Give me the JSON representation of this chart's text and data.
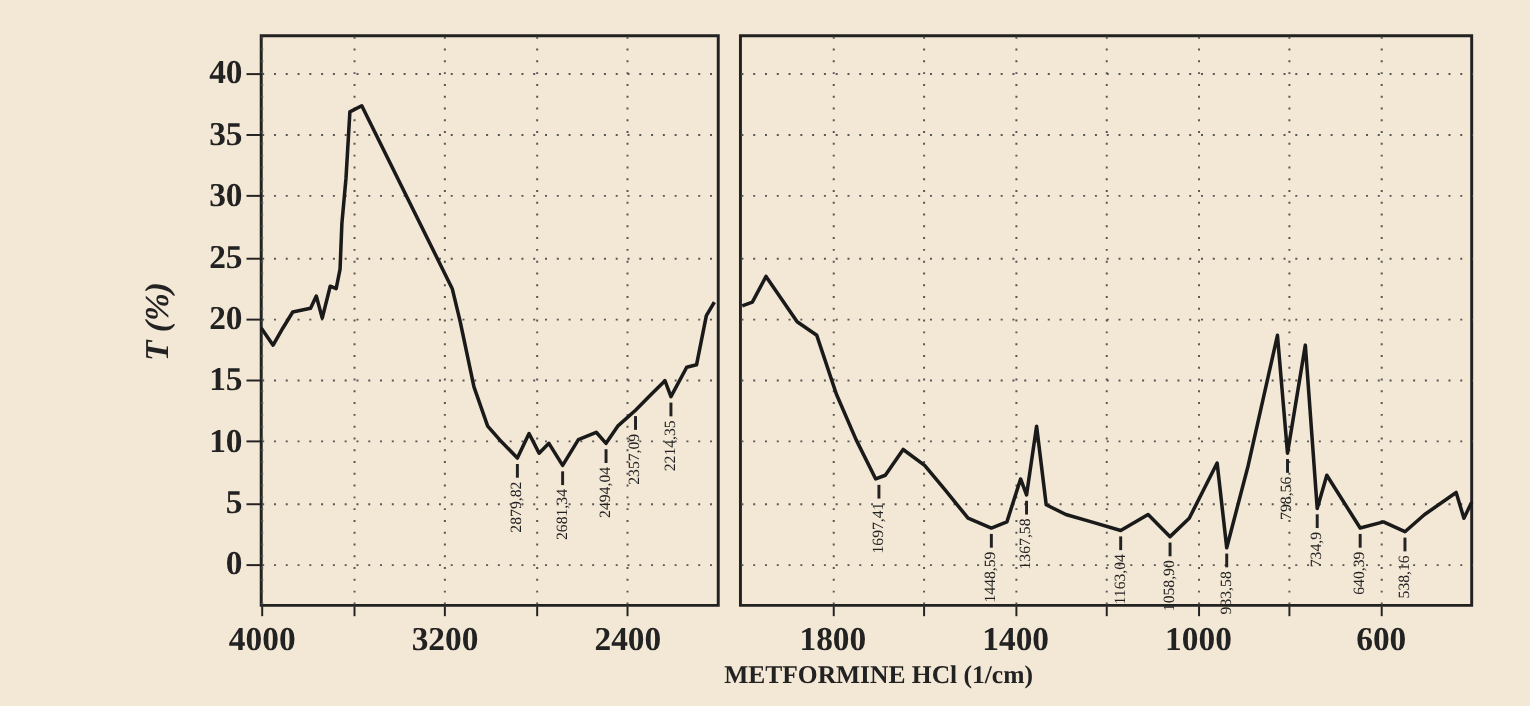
{
  "chart_data": [
    {
      "type": "line",
      "ylabel": "T (%)",
      "x": [
        4000,
        3948,
        3905,
        3862,
        3784,
        3759,
        3733,
        3698,
        3672,
        3655,
        3647,
        3629,
        3612,
        3560,
        3164,
        3129,
        3069,
        3009,
        2957,
        2879,
        2828,
        2784,
        2741,
        2681,
        2612,
        2534,
        2491,
        2440,
        2362,
        2293,
        2233,
        2207,
        2138,
        2095,
        2052,
        2017
      ],
      "series": [
        {
          "color": "#1a1a1a",
          "values": [
            19.2,
            17.8,
            19.2,
            20.5,
            20.8,
            21.8,
            20,
            22.6,
            22.4,
            24,
            27.7,
            31.4,
            36.8,
            37.3,
            22.4,
            19.7,
            14.4,
            11.2,
            10.1,
            8.6,
            10.6,
            9,
            9.8,
            8,
            10.1,
            10.7,
            9.8,
            11.2,
            12.5,
            13.8,
            14.9,
            13.6,
            16,
            16.2,
            20.2,
            21.3
          ]
        }
      ],
      "xlim": [
        4000,
        2000
      ],
      "xticks": [
        4000,
        {
          "value": 3600,
          "label": null
        },
        3200,
        {
          "value": 2800,
          "label": null
        },
        2400
      ],
      "ylim": [
        -3.4,
        43
      ],
      "yticks": [
        0,
        5,
        10,
        15,
        20,
        25,
        30,
        35,
        40
      ],
      "grid": true,
      "line_style": "solid",
      "marker": "none",
      "annotations": [
        {
          "text": "2879,82",
          "x": 2879,
          "y": 8.6
        },
        {
          "text": "2681,34",
          "x": 2681,
          "y": 8
        },
        {
          "text": "2494,04",
          "x": 2491,
          "y": 9.8
        },
        {
          "text": "2357,09",
          "x": 2362,
          "y": 12.5
        },
        {
          "text": "2214,35",
          "x": 2207,
          "y": 13.6
        }
      ]
    },
    {
      "type": "line",
      "xlabel": "METFORMINE HCl (1/cm)",
      "tick_labels": "x",
      "x": [
        1996,
        1974,
        1944,
        1876,
        1833,
        1790,
        1747,
        1704,
        1683,
        1644,
        1597,
        1554,
        1502,
        1451,
        1417,
        1387,
        1374,
        1352,
        1331,
        1288,
        1232,
        1168,
        1108,
        1060,
        1018,
        957,
        936,
        889,
        825,
        803,
        764,
        738,
        717,
        644,
        593,
        546,
        503,
        434,
        417,
        400
      ],
      "series": [
        {
          "color": "#1a1a1a",
          "values": [
            21,
            21.3,
            23.4,
            19.7,
            18.6,
            13.8,
            10.1,
            6.9,
            7.2,
            9.3,
            8,
            6.1,
            3.7,
            2.9,
            3.4,
            6.9,
            5.6,
            11.2,
            4.8,
            4,
            3.4,
            2.7,
            4,
            2.2,
            3.7,
            8.2,
            1.3,
            8,
            18.6,
            9,
            17.8,
            4.5,
            7.2,
            2.9,
            3.4,
            2.6,
            4,
            5.8,
            3.7,
            5
          ]
        }
      ],
      "xlim": [
        2000,
        400
      ],
      "xticks": [
        1800,
        {
          "value": 1600,
          "label": null
        },
        1400,
        {
          "value": 1200,
          "label": null
        },
        1000,
        {
          "value": 800,
          "label": null
        },
        600
      ],
      "ylim": [
        -3.4,
        43
      ],
      "yticks": [
        0,
        5,
        10,
        15,
        20,
        25,
        30,
        35,
        40
      ],
      "grid": true,
      "line_style": "solid",
      "marker": "none",
      "annotations": [
        {
          "text": "1697,41",
          "x": 1697,
          "y": 6.9
        },
        {
          "text": "1448,59",
          "x": 1451,
          "y": 2.9
        },
        {
          "text": "1367,58",
          "x": 1374,
          "y": 5.6
        },
        {
          "text": "1163,04",
          "x": 1168,
          "y": 2.7
        },
        {
          "text": "1058,90",
          "x": 1060,
          "y": 2.2
        },
        {
          "text": "933,58",
          "x": 936,
          "y": 1.3
        },
        {
          "text": "798,56",
          "x": 803,
          "y": 9
        },
        {
          "text": "734,9",
          "x": 738,
          "y": 4.5
        },
        {
          "text": "640,39",
          "x": 644,
          "y": 2.9
        },
        {
          "text": "538,16",
          "x": 546,
          "y": 2.6
        }
      ]
    }
  ]
}
